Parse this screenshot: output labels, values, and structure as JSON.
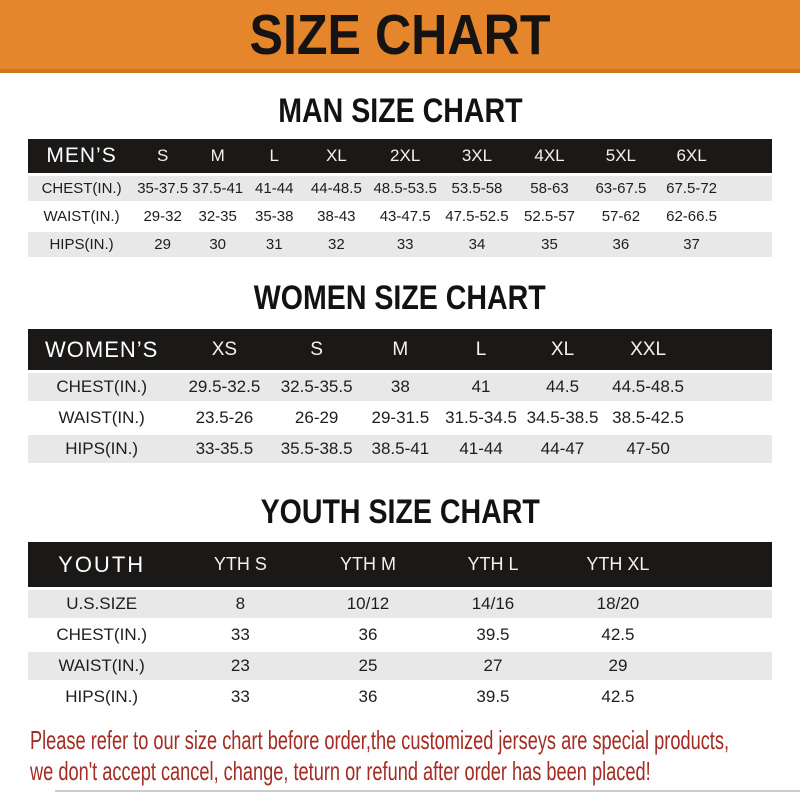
{
  "banner": {
    "title": "SIZE CHART",
    "bg_color": "#E5862C",
    "text_color": "#161412"
  },
  "sections": [
    {
      "slug": "men",
      "title": "MAN SIZE CHART",
      "header_label": "MEN’S",
      "columns": [
        "S",
        "M",
        "L",
        "XL",
        "2XL",
        "3XL",
        "4XL",
        "5XL",
        "6XL"
      ],
      "rows": [
        {
          "label": "CHEST(IN.)",
          "values": [
            "35-37.5",
            "37.5-41",
            "41-44",
            "44-48.5",
            "48.5-53.5",
            "53.5-58",
            "58-63",
            "63-67.5",
            "67.5-72"
          ]
        },
        {
          "label": "WAIST(IN.)",
          "values": [
            "29-32",
            "32-35",
            "35-38",
            "38-43",
            "43-47.5",
            "47.5-52.5",
            "52.5-57",
            "57-62",
            "62-66.5"
          ]
        },
        {
          "label": "HIPS(IN.)",
          "values": [
            "29",
            "30",
            "31",
            "32",
            "33",
            "34",
            "35",
            "36",
            "37"
          ]
        }
      ]
    },
    {
      "slug": "women",
      "title": "WOMEN SIZE CHART",
      "header_label": "WOMEN’S",
      "columns": [
        "XS",
        "S",
        "M",
        "L",
        "XL",
        "XXL"
      ],
      "rows": [
        {
          "label": "CHEST(IN.)",
          "values": [
            "29.5-32.5",
            "32.5-35.5",
            "38",
            "41",
            "44.5",
            "44.5-48.5"
          ]
        },
        {
          "label": "WAIST(IN.)",
          "values": [
            "23.5-26",
            "26-29",
            "29-31.5",
            "31.5-34.5",
            "34.5-38.5",
            "38.5-42.5"
          ]
        },
        {
          "label": "HIPS(IN.)",
          "values": [
            "33-35.5",
            "35.5-38.5",
            "38.5-41",
            "41-44",
            "44-47",
            "47-50"
          ]
        }
      ]
    },
    {
      "slug": "youth",
      "title": "YOUTH SIZE CHART",
      "header_label": "YOUTH",
      "columns": [
        "YTH S",
        "YTH M",
        "YTH L",
        "YTH XL"
      ],
      "rows": [
        {
          "label": "U.S.SIZE",
          "values": [
            "8",
            "10/12",
            "14/16",
            "18/20"
          ]
        },
        {
          "label": "CHEST(IN.)",
          "values": [
            "33",
            "36",
            "39.5",
            "42.5"
          ]
        },
        {
          "label": "WAIST(IN.)",
          "values": [
            "23",
            "25",
            "27",
            "29"
          ]
        },
        {
          "label": "HIPS(IN.)",
          "values": [
            "33",
            "36",
            "39.5",
            "42.5"
          ]
        }
      ]
    }
  ],
  "footer": {
    "line1": "Please refer to our size chart before order,the customized jerseys are special products,",
    "line2": "we don't accept cancel, change, teturn or refund after order has been placed!",
    "text_color": "#A32C24"
  },
  "colors": {
    "banner_orange": "#E5862C",
    "banner_border": "#cf751f",
    "header_bar_black": "#1b1918",
    "row_stripe_gray": "#e8e8e8",
    "table_text": "#1d1d1d",
    "disclaimer_red": "#A32C24"
  }
}
